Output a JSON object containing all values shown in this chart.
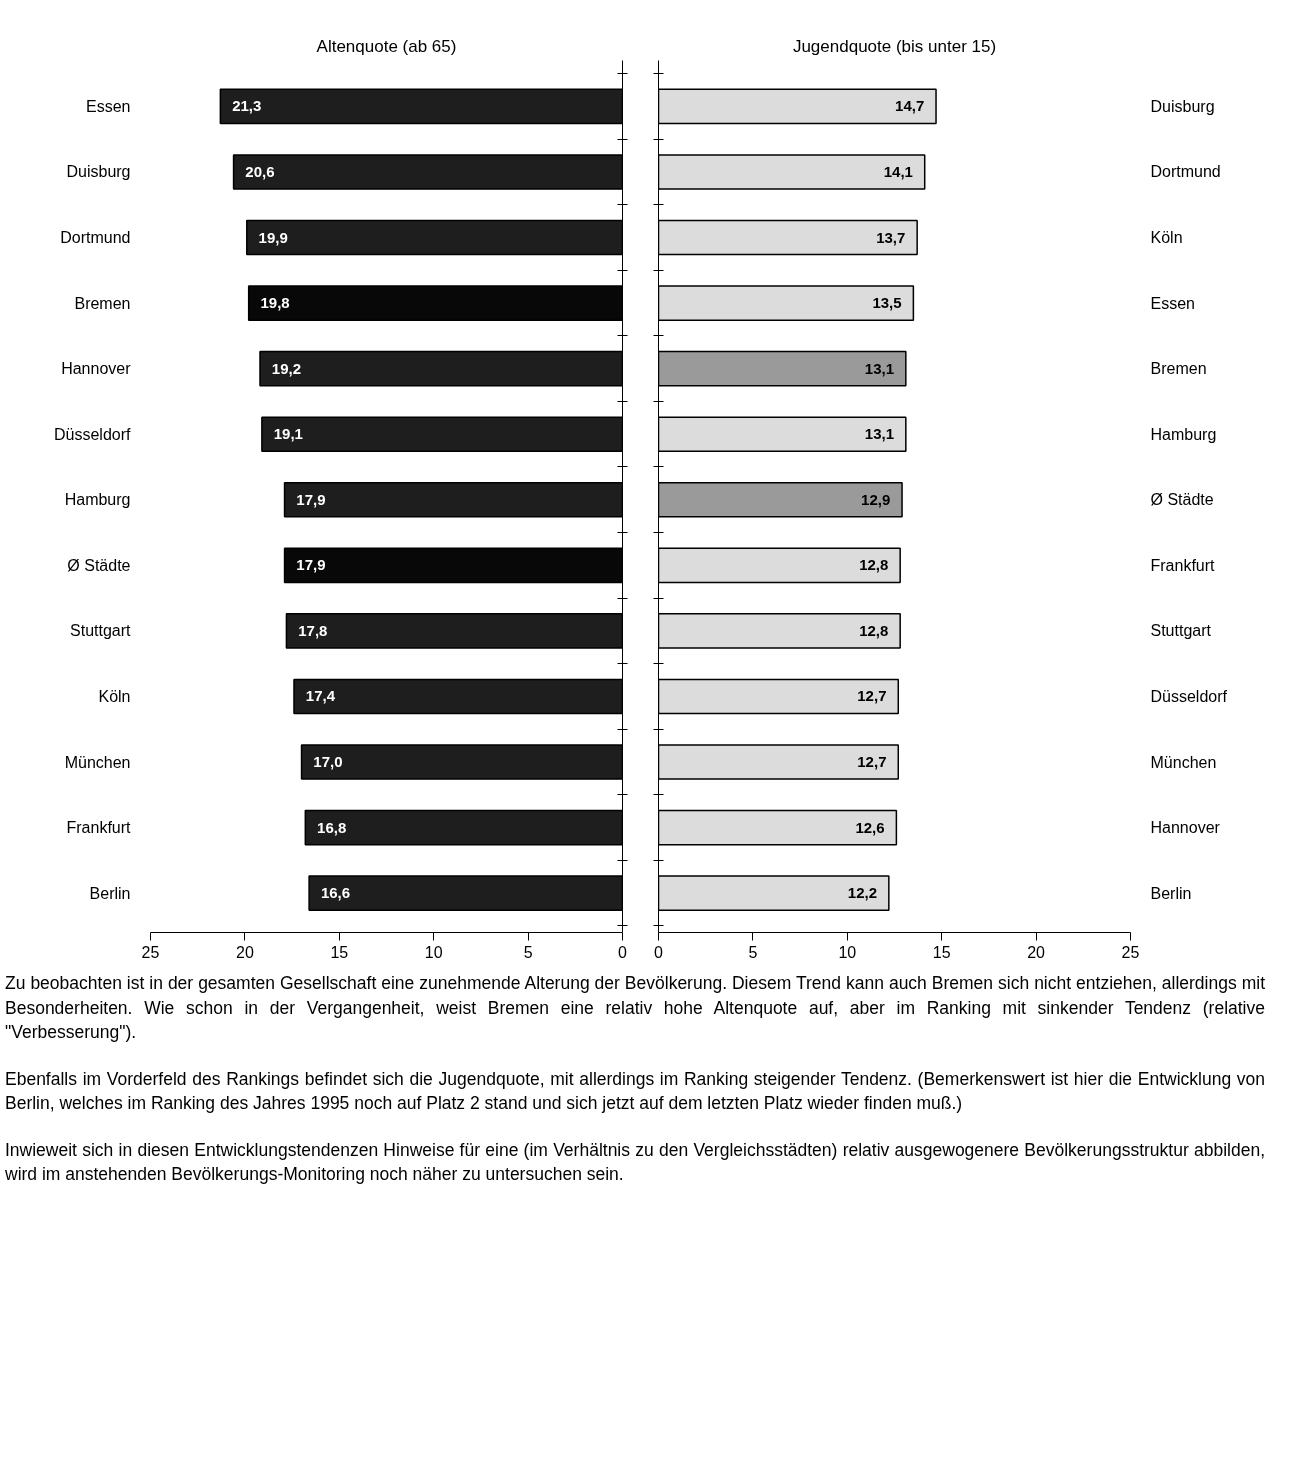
{
  "chart_data": [
    {
      "type": "bar",
      "orientation": "horizontal",
      "title": "Altenquote (ab 65)",
      "categories": [
        "Essen",
        "Duisburg",
        "Dortmund",
        "Bremen",
        "Hannover",
        "Düsseldorf",
        "Hamburg",
        "Ø Städte",
        "Stuttgart",
        "Köln",
        "München",
        "Frankfurt",
        "Berlin"
      ],
      "values": [
        21.3,
        20.6,
        19.9,
        19.8,
        19.2,
        19.1,
        17.9,
        17.9,
        17.8,
        17.4,
        17.0,
        16.8,
        16.6
      ],
      "value_labels": [
        "21,3",
        "20,6",
        "19,9",
        "19,8",
        "19,2",
        "19,1",
        "17,9",
        "17,9",
        "17,8",
        "17,4",
        "17,0",
        "16,8",
        "16,6"
      ],
      "colors": [
        "#1e1e1e",
        "#1e1e1e",
        "#1e1e1e",
        "#080808",
        "#1e1e1e",
        "#1e1e1e",
        "#1e1e1e",
        "#080808",
        "#1e1e1e",
        "#1e1e1e",
        "#1e1e1e",
        "#1e1e1e",
        "#1e1e1e"
      ],
      "xlim": [
        25,
        0
      ],
      "xticks": [
        25,
        20,
        15,
        10,
        5,
        0
      ],
      "grid": false
    },
    {
      "type": "bar",
      "orientation": "horizontal",
      "title": "Jugendquote (bis unter 15)",
      "categories": [
        "Duisburg",
        "Dortmund",
        "Köln",
        "Essen",
        "Bremen",
        "Hamburg",
        "Ø Städte",
        "Frankfurt",
        "Stuttgart",
        "Düsseldorf",
        "München",
        "Hannover",
        "Berlin"
      ],
      "values": [
        14.7,
        14.1,
        13.7,
        13.5,
        13.1,
        13.1,
        12.9,
        12.8,
        12.8,
        12.7,
        12.7,
        12.6,
        12.2
      ],
      "value_labels": [
        "14,7",
        "14,1",
        "13,7",
        "13,5",
        "13,1",
        "13,1",
        "12,9",
        "12,8",
        "12,8",
        "12,7",
        "12,7",
        "12,6",
        "12,2"
      ],
      "colors": [
        "#dcdcdc",
        "#dcdcdc",
        "#dcdcdc",
        "#dcdcdc",
        "#9a9a9a",
        "#dcdcdc",
        "#9a9a9a",
        "#dcdcdc",
        "#dcdcdc",
        "#dcdcdc",
        "#dcdcdc",
        "#dcdcdc",
        "#dcdcdc"
      ],
      "xlim": [
        0,
        25
      ],
      "xticks": [
        0,
        5,
        10,
        15,
        20,
        25
      ],
      "grid": false,
      "annotations": [
        "Zu beobachten ist in der gesamten Gesellschaft eine zunehmende Alterung der Bevölkerung. Diesem Trend kann auch Bremen sich nicht entziehen, allerdings mit Besonderheiten. Wie schon in der Vergangenheit, weist Bremen eine relativ hohe Altenquote auf, aber im Ranking mit sinkender Tendenz (relative \"Verbesserung\").",
        "Ebenfalls im Vorderfeld des Rankings befindet sich die Jugendquote, mit allerdings im Ranking steigender Tendenz. (Bemerkenswert ist hier die Entwicklung von Berlin, welches im Ranking des Jahres 1995 noch auf Platz 2 stand und sich jetzt auf dem letzten Platz wieder finden muß.)",
        "Inwieweit sich in diesen Entwicklungstendenzen Hinweise für eine (im Verhältnis zu den Vergleichsstädten) relativ ausgewogenere Bevölkerungsstruktur abbilden, wird im anstehenden Bevölkerungs-Monitoring noch näher zu untersuchen sein."
      ]
    }
  ]
}
